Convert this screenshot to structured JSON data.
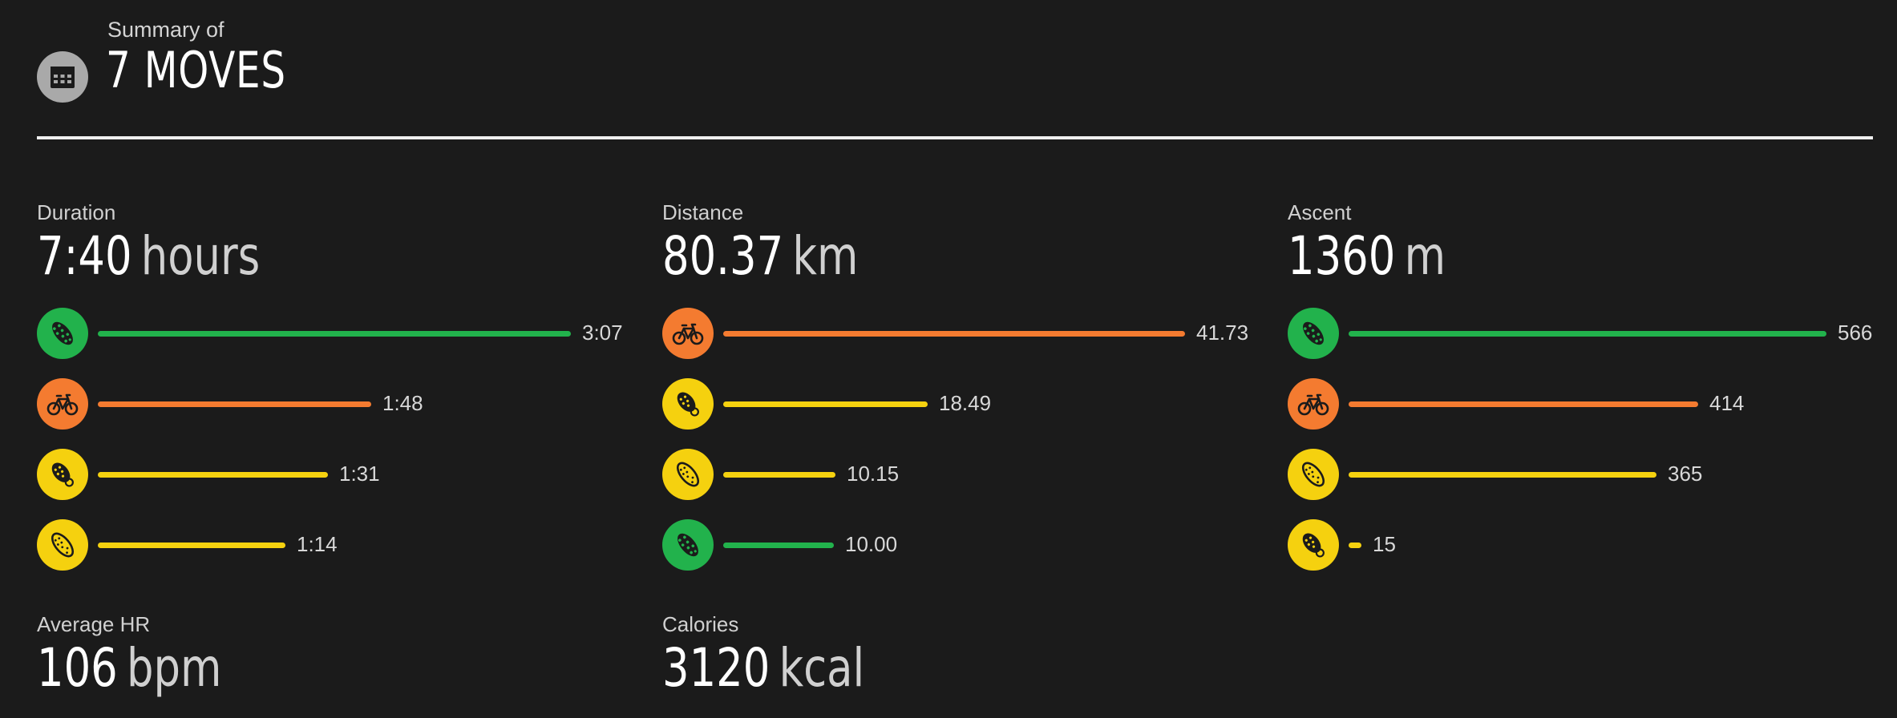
{
  "header": {
    "subtitle": "Summary of",
    "title": "7 MOVES",
    "icon": "calendar-icon"
  },
  "colors": {
    "background": "#1b1b1b",
    "green": "#22b24c",
    "orange": "#f47b30",
    "yellow": "#f5d10f",
    "icon_gray": "#a9a9a9"
  },
  "metrics": [
    {
      "label": "Duration",
      "value": "7:40",
      "unit": "hours",
      "rows": [
        {
          "sport": "trail-shoe",
          "color": "green",
          "value": "3:07",
          "fraction": 1.0
        },
        {
          "sport": "bicycle",
          "color": "orange",
          "value": "1:48",
          "fraction": 0.578
        },
        {
          "sport": "run-shoe",
          "color": "yellow",
          "value": "1:31",
          "fraction": 0.487
        },
        {
          "sport": "walk-shoe",
          "color": "yellow",
          "value": "1:14",
          "fraction": 0.396
        }
      ]
    },
    {
      "label": "Distance",
      "value": "80.37",
      "unit": "km",
      "rows": [
        {
          "sport": "bicycle",
          "color": "orange",
          "value": "41.73",
          "fraction": 1.0
        },
        {
          "sport": "run-shoe",
          "color": "yellow",
          "value": "18.49",
          "fraction": 0.443
        },
        {
          "sport": "walk-shoe",
          "color": "yellow",
          "value": "10.15",
          "fraction": 0.243
        },
        {
          "sport": "trail-shoe",
          "color": "green",
          "value": "10.00",
          "fraction": 0.24
        }
      ]
    },
    {
      "label": "Ascent",
      "value": "1360",
      "unit": "m",
      "rows": [
        {
          "sport": "trail-shoe",
          "color": "green",
          "value": "566",
          "fraction": 1.0
        },
        {
          "sport": "bicycle",
          "color": "orange",
          "value": "414",
          "fraction": 0.731
        },
        {
          "sport": "walk-shoe",
          "color": "yellow",
          "value": "365",
          "fraction": 0.645
        },
        {
          "sport": "run-shoe",
          "color": "yellow",
          "value": "15",
          "fraction": 0.026
        }
      ]
    },
    {
      "label": "Average HR",
      "value": "106",
      "unit": "bpm",
      "rows": []
    },
    {
      "label": "Calories",
      "value": "3120",
      "unit": "kcal",
      "rows": []
    }
  ]
}
